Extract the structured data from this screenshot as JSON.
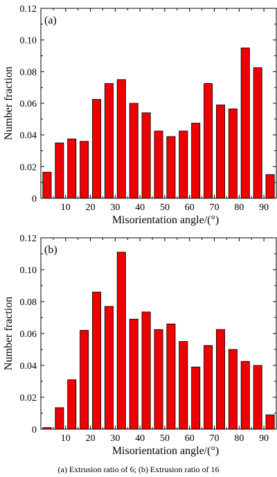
{
  "figure": {
    "caption": "(a) Extrusion ratio of 6; (b) Extrusion ratio of 16",
    "bar_color": "#ee0000"
  },
  "chart_data": [
    {
      "type": "bar",
      "panel_label": "(a)",
      "xlabel": "Misorientation angle/(°)",
      "ylabel": "Number fraction",
      "x": [
        2.5,
        7.5,
        12.5,
        17.5,
        22.5,
        27.5,
        32.5,
        37.5,
        42.5,
        47.5,
        52.5,
        57.5,
        62.5,
        67.5,
        72.5,
        77.5,
        82.5,
        87.5,
        92.5
      ],
      "values": [
        0.0165,
        0.035,
        0.0375,
        0.036,
        0.0625,
        0.0725,
        0.075,
        0.06,
        0.054,
        0.0425,
        0.039,
        0.0425,
        0.0475,
        0.0725,
        0.059,
        0.0565,
        0.095,
        0.0825,
        0.015
      ],
      "xlim": [
        0,
        95
      ],
      "ylim": [
        0,
        0.12
      ],
      "x_ticks": [
        10,
        20,
        30,
        40,
        50,
        60,
        70,
        80,
        90
      ],
      "x_tick_labels": [
        "10",
        "20",
        "30",
        "40",
        "50",
        "60",
        "70",
        "80",
        "90"
      ],
      "y_ticks": [
        0,
        0.02,
        0.04,
        0.06,
        0.08,
        0.1,
        0.12
      ],
      "y_tick_labels": [
        "0",
        "0.02",
        "0.04",
        "0.06",
        "0.08",
        "0.10",
        "0.12"
      ],
      "grid": false,
      "legend": "none"
    },
    {
      "type": "bar",
      "panel_label": "(b)",
      "xlabel": "Misorientation angle/(°)",
      "ylabel": "Number fraction",
      "x": [
        2.5,
        7.5,
        12.5,
        17.5,
        22.5,
        27.5,
        32.5,
        37.5,
        42.5,
        47.5,
        52.5,
        57.5,
        62.5,
        67.5,
        72.5,
        77.5,
        82.5,
        87.5,
        92.5
      ],
      "values": [
        0.001,
        0.0135,
        0.031,
        0.062,
        0.086,
        0.077,
        0.111,
        0.069,
        0.0735,
        0.0625,
        0.066,
        0.055,
        0.039,
        0.0525,
        0.0625,
        0.05,
        0.0425,
        0.04,
        0.009
      ],
      "xlim": [
        0,
        95
      ],
      "ylim": [
        0,
        0.12
      ],
      "x_ticks": [
        10,
        20,
        30,
        40,
        50,
        60,
        70,
        80,
        90
      ],
      "x_tick_labels": [
        "10",
        "20",
        "30",
        "40",
        "50",
        "60",
        "70",
        "80",
        "90"
      ],
      "y_ticks": [
        0,
        0.02,
        0.04,
        0.06,
        0.08,
        0.1,
        0.12
      ],
      "y_tick_labels": [
        "0",
        "0.02",
        "0.04",
        "0.06",
        "0.08",
        "0.10",
        "0.12"
      ],
      "grid": false,
      "legend": "none"
    }
  ]
}
